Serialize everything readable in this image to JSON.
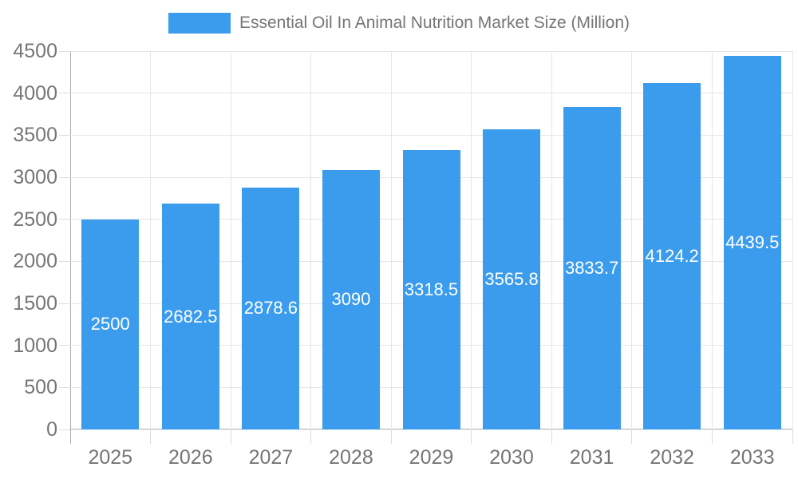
{
  "legend": {
    "label": "Essential Oil In Animal Nutrition Market Size (Million)"
  },
  "chart_data": {
    "type": "bar",
    "title": "Essential Oil In Animal Nutrition Market Size (Million)",
    "categories": [
      "2025",
      "2026",
      "2027",
      "2028",
      "2029",
      "2030",
      "2031",
      "2032",
      "2033"
    ],
    "values": [
      2500,
      2682.5,
      2878.6,
      3090,
      3318.5,
      3565.8,
      3833.7,
      4124.2,
      4439.5
    ],
    "value_labels": [
      "2500",
      "2682.5",
      "2878.6",
      "3090",
      "3318.5",
      "3565.8",
      "3833.7",
      "4124.2",
      "4439.5"
    ],
    "xlabel": "",
    "ylabel": "",
    "ylim": [
      0,
      4500
    ],
    "ytick_step": 500,
    "yticks": [
      0,
      500,
      1000,
      1500,
      2000,
      2500,
      3000,
      3500,
      4000,
      4500
    ],
    "ytick_labels": [
      "0",
      "500",
      "1000",
      "1500",
      "2000",
      "2500",
      "3000",
      "3500",
      "4000",
      "4500"
    ],
    "grid": true,
    "legend_position": "top",
    "colors": {
      "bar": "#3b9ced",
      "value_label": "#ffffff",
      "axis_text": "#757575",
      "grid_line": "#e6e6e6",
      "tick_line": "#dcdcdc",
      "axis_border": "#ababab",
      "background": "#ffffff"
    }
  }
}
